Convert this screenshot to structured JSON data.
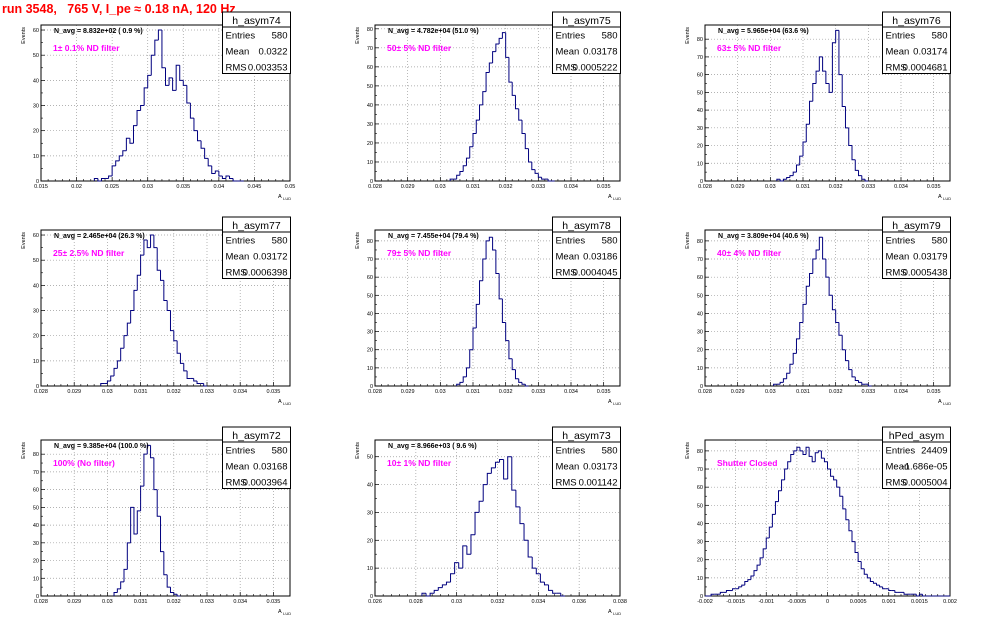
{
  "header": {
    "run_title": "run 3548,   765 V, I_pe ≈ 0.18 nA, 120 Hz"
  },
  "colors": {
    "histogram": "#00007f",
    "annotation": "#ff00ff",
    "header_text": "#ff0000",
    "frame": "#000000",
    "grid": "#9a9a9a"
  },
  "chart_data": [
    {
      "type": "bar",
      "hist_name": "h_asym74",
      "nav_label": "N_avg = 8.832e+02 ( 0.9 %)",
      "filter_label": "1± 0.1% ND filter",
      "stats": {
        "entries_label": "Entries",
        "entries": "580",
        "mean_label": "Mean",
        "mean": "0.0322",
        "rms_label": "RMS",
        "rms": "0.003353"
      },
      "ylabel": "Events",
      "xlabel": "A",
      "xlim": [
        0.015,
        0.05
      ],
      "ylim": [
        0,
        62
      ],
      "xticks": [
        0.015,
        0.02,
        0.025,
        0.03,
        0.035,
        0.04,
        0.045,
        0.05
      ],
      "xtick_labels": [
        "0.015",
        "0.02",
        "0.025",
        "0.03",
        "0.035",
        "0.04",
        "0.045",
        "0.05"
      ],
      "yticks": [
        0,
        10,
        20,
        30,
        40,
        50,
        60
      ],
      "bin_low": 0.0225,
      "bin_width": 0.0005,
      "values": [
        1,
        0,
        1,
        1,
        2,
        6,
        8,
        10,
        12,
        17,
        15,
        22,
        28,
        30,
        37,
        42,
        50,
        56,
        60,
        45,
        38,
        41,
        36,
        46,
        40,
        38,
        31,
        25,
        20,
        16,
        13,
        9,
        6,
        3,
        4,
        2,
        1,
        2,
        1,
        0,
        0,
        0
      ]
    },
    {
      "type": "bar",
      "hist_name": "h_asym75",
      "nav_label": "N_avg = 4.782e+04 (51.0 %)",
      "filter_label": "50± 5% ND filter",
      "stats": {
        "entries_label": "Entries",
        "entries": "580",
        "mean_label": "Mean",
        "mean": "0.03178",
        "rms_label": "RMS",
        "rms": "0.0005222"
      },
      "ylabel": "Events",
      "xlabel": "A",
      "xlim": [
        0.028,
        0.0355
      ],
      "ylim": [
        0,
        82
      ],
      "xticks": [
        0.028,
        0.029,
        0.03,
        0.031,
        0.032,
        0.033,
        0.034,
        0.035
      ],
      "xtick_labels": [
        "0.028",
        "0.029",
        "0.03",
        "0.031",
        "0.032",
        "0.033",
        "0.034",
        "0.035"
      ],
      "yticks": [
        0,
        10,
        20,
        30,
        40,
        50,
        60,
        70,
        80
      ],
      "bin_low": 0.0303,
      "bin_width": 0.0001,
      "values": [
        1,
        1,
        3,
        5,
        8,
        12,
        18,
        25,
        32,
        40,
        47,
        57,
        62,
        68,
        72,
        75,
        78,
        65,
        52,
        45,
        38,
        32,
        25,
        17,
        10,
        6,
        4,
        2,
        1,
        1,
        0,
        0
      ]
    },
    {
      "type": "bar",
      "hist_name": "h_asym76",
      "nav_label": "N_avg = 5.965e+04 (63.6 %)",
      "filter_label": "63± 5% ND filter",
      "stats": {
        "entries_label": "Entries",
        "entries": "580",
        "mean_label": "Mean",
        "mean": "0.03174",
        "rms_label": "RMS",
        "rms": "0.0004681"
      },
      "ylabel": "Events",
      "xlabel": "A",
      "xlim": [
        0.028,
        0.0355
      ],
      "ylim": [
        0,
        88
      ],
      "xticks": [
        0.028,
        0.029,
        0.03,
        0.031,
        0.032,
        0.033,
        0.034,
        0.035
      ],
      "xtick_labels": [
        "0.028",
        "0.029",
        "0.03",
        "0.031",
        "0.032",
        "0.033",
        "0.034",
        "0.035"
      ],
      "yticks": [
        0,
        10,
        20,
        30,
        40,
        50,
        60,
        70,
        80
      ],
      "bin_low": 0.0302,
      "bin_width": 0.0001,
      "values": [
        1,
        0,
        1,
        2,
        3,
        5,
        9,
        14,
        22,
        32,
        45,
        55,
        62,
        70,
        62,
        55,
        50,
        78,
        85,
        60,
        42,
        30,
        20,
        12,
        6,
        3,
        1,
        0
      ]
    },
    {
      "type": "bar",
      "hist_name": "h_asym77",
      "nav_label": "N_avg = 2.465e+04 (26.3 %)",
      "filter_label": "25± 2.5% ND filter",
      "stats": {
        "entries_label": "Entries",
        "entries": "580",
        "mean_label": "Mean",
        "mean": "0.03172",
        "rms_label": "RMS",
        "rms": "0.0006398"
      },
      "ylabel": "Events",
      "xlabel": "A",
      "xlim": [
        0.028,
        0.0355
      ],
      "ylim": [
        0,
        62
      ],
      "xticks": [
        0.028,
        0.029,
        0.03,
        0.031,
        0.032,
        0.033,
        0.034,
        0.035
      ],
      "xtick_labels": [
        "0.028",
        "0.029",
        "0.03",
        "0.031",
        "0.032",
        "0.033",
        "0.034",
        "0.035"
      ],
      "yticks": [
        0,
        10,
        20,
        30,
        40,
        50,
        60
      ],
      "bin_low": 0.0298,
      "bin_width": 0.0001,
      "values": [
        1,
        1,
        2,
        4,
        7,
        10,
        15,
        20,
        25,
        30,
        38,
        44,
        52,
        58,
        55,
        60,
        55,
        46,
        42,
        34,
        30,
        22,
        18,
        13,
        9,
        6,
        3,
        3,
        2,
        1,
        1,
        0
      ]
    },
    {
      "type": "bar",
      "hist_name": "h_asym78",
      "nav_label": "N_avg = 7.455e+04 (79.4 %)",
      "filter_label": "79± 5% ND filter",
      "stats": {
        "entries_label": "Entries",
        "entries": "580",
        "mean_label": "Mean",
        "mean": "0.03186",
        "rms_label": "RMS",
        "rms": "0.0004045"
      },
      "ylabel": "Events",
      "xlabel": "A",
      "xlim": [
        0.028,
        0.0355
      ],
      "ylim": [
        0,
        86
      ],
      "xticks": [
        0.028,
        0.029,
        0.03,
        0.031,
        0.032,
        0.033,
        0.034,
        0.035
      ],
      "xtick_labels": [
        "0.028",
        "0.029",
        "0.03",
        "0.031",
        "0.032",
        "0.033",
        "0.034",
        "0.035"
      ],
      "yticks": [
        0,
        10,
        20,
        30,
        40,
        50,
        60,
        70,
        80
      ],
      "bin_low": 0.0305,
      "bin_width": 0.0001,
      "values": [
        1,
        2,
        5,
        10,
        20,
        32,
        45,
        58,
        70,
        80,
        82,
        75,
        62,
        48,
        35,
        25,
        15,
        9,
        4,
        2,
        1,
        0
      ]
    },
    {
      "type": "bar",
      "hist_name": "h_asym79",
      "nav_label": "N_avg = 3.809e+04 (40.6 %)",
      "filter_label": "40± 4% ND filter",
      "stats": {
        "entries_label": "Entries",
        "entries": "580",
        "mean_label": "Mean",
        "mean": "0.03179",
        "rms_label": "RMS",
        "rms": "0.0005438"
      },
      "ylabel": "Events",
      "xlabel": "A",
      "xlim": [
        0.028,
        0.0355
      ],
      "ylim": [
        0,
        86
      ],
      "xticks": [
        0.028,
        0.029,
        0.03,
        0.031,
        0.032,
        0.033,
        0.034,
        0.035
      ],
      "xtick_labels": [
        "0.028",
        "0.029",
        "0.03",
        "0.031",
        "0.032",
        "0.033",
        "0.034",
        "0.035"
      ],
      "yticks": [
        0,
        10,
        20,
        30,
        40,
        50,
        60,
        70,
        80
      ],
      "bin_low": 0.0301,
      "bin_width": 0.0001,
      "values": [
        1,
        1,
        2,
        4,
        7,
        12,
        18,
        26,
        35,
        45,
        55,
        62,
        70,
        75,
        82,
        70,
        60,
        50,
        42,
        35,
        28,
        20,
        14,
        9,
        5,
        3,
        2,
        1,
        1,
        0
      ]
    },
    {
      "type": "bar",
      "hist_name": "h_asym72",
      "nav_label": "N_avg = 9.385e+04 (100.0 %)",
      "filter_label": "100% (No filter)",
      "stats": {
        "entries_label": "Entries",
        "entries": "580",
        "mean_label": "Mean",
        "mean": "0.03168",
        "rms_label": "RMS",
        "rms": "0.0003964"
      },
      "ylabel": "Events",
      "xlabel": "A",
      "xlim": [
        0.028,
        0.0355
      ],
      "ylim": [
        0,
        88
      ],
      "xticks": [
        0.028,
        0.029,
        0.03,
        0.031,
        0.032,
        0.033,
        0.034,
        0.035
      ],
      "xtick_labels": [
        "0.028",
        "0.029",
        "0.03",
        "0.031",
        "0.032",
        "0.033",
        "0.034",
        "0.035"
      ],
      "yticks": [
        0,
        10,
        20,
        30,
        40,
        50,
        60,
        70,
        80
      ],
      "bin_low": 0.0302,
      "bin_width": 0.0001,
      "values": [
        2,
        4,
        8,
        15,
        30,
        50,
        35,
        48,
        62,
        80,
        85,
        78,
        60,
        45,
        25,
        12,
        5,
        2,
        1,
        0
      ]
    },
    {
      "type": "bar",
      "hist_name": "h_asym73",
      "nav_label": "N_avg = 8.966e+03 ( 9.6 %)",
      "filter_label": "10± 1% ND filter",
      "stats": {
        "entries_label": "Entries",
        "entries": "580",
        "mean_label": "Mean",
        "mean": "0.03173",
        "rms_label": "RMS",
        "rms": "0.001142"
      },
      "ylabel": "Events",
      "xlabel": "A",
      "xlim": [
        0.026,
        0.038
      ],
      "ylim": [
        0,
        56
      ],
      "xticks": [
        0.026,
        0.028,
        0.03,
        0.032,
        0.034,
        0.036,
        0.038
      ],
      "xtick_labels": [
        "0.026",
        "0.028",
        "0.03",
        "0.032",
        "0.034",
        "0.036",
        "0.038"
      ],
      "yticks": [
        0,
        10,
        20,
        30,
        40,
        50
      ],
      "bin_low": 0.0283,
      "bin_width": 0.0002,
      "values": [
        1,
        0,
        1,
        2,
        3,
        4,
        5,
        8,
        12,
        10,
        18,
        15,
        22,
        30,
        34,
        40,
        44,
        46,
        48,
        49,
        42,
        50,
        38,
        32,
        26,
        20,
        14,
        10,
        8,
        5,
        4,
        2,
        1,
        1,
        0
      ]
    },
    {
      "type": "bar",
      "hist_name": "hPed_asym",
      "nav_label": "",
      "filter_label": "Shutter Closed",
      "stats": {
        "entries_label": "Entries",
        "entries": "24409",
        "mean_label": "Mean",
        "mean": "-1.686e-05",
        "rms_label": "RMS",
        "rms": "0.0005004"
      },
      "ylabel": "Events",
      "xlabel": "",
      "xlim": [
        -0.002,
        0.002
      ],
      "ylim": [
        0,
        86
      ],
      "xticks": [
        -0.002,
        -0.0015,
        -0.001,
        -0.0005,
        0,
        0.0005,
        0.001,
        0.0015,
        0.002
      ],
      "xtick_labels": [
        "-0.002",
        "-0.0015",
        "-0.001",
        "-0.0005",
        "0",
        "0.0005",
        "0.001",
        "0.0015",
        "0.002"
      ],
      "yticks": [
        0,
        10,
        20,
        30,
        40,
        50,
        60,
        70,
        80
      ],
      "bin_low": -0.002,
      "bin_width": 5e-05,
      "values": [
        0,
        0,
        1,
        1,
        1,
        2,
        2,
        3,
        3,
        4,
        4,
        5,
        6,
        8,
        9,
        11,
        14,
        17,
        21,
        26,
        32,
        38,
        45,
        52,
        58,
        64,
        70,
        74,
        78,
        80,
        82,
        80,
        78,
        82,
        77,
        74,
        79,
        80,
        76,
        74,
        70,
        66,
        64,
        60,
        55,
        48,
        42,
        36,
        30,
        24,
        19,
        15,
        12,
        10,
        8,
        7,
        6,
        5,
        4,
        4,
        3,
        3,
        2,
        2,
        2,
        1,
        1,
        1,
        1,
        0,
        1,
        0,
        0,
        0,
        0,
        0,
        0,
        0,
        0,
        0
      ]
    }
  ]
}
